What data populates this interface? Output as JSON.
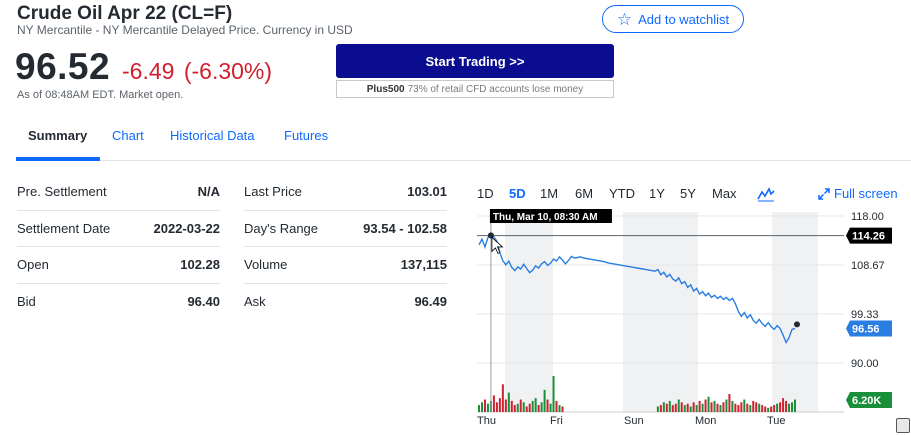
{
  "quote": {
    "title": "Crude Oil Apr 22 (CL=F)",
    "subtitle": "NY Mercantile - NY Mercantile Delayed Price. Currency in USD",
    "price": "96.52",
    "change": "-6.49",
    "change_pct": "(-6.30%)",
    "as_of": "As of 08:48AM EDT. Market open."
  },
  "watchlist_label": "Add to watchlist",
  "promo": {
    "button_label": "Start Trading >>",
    "brand": "Plus500",
    "disclaimer": "73% of retail CFD accounts lose money"
  },
  "tabs": [
    {
      "label": "Summary",
      "active": true
    },
    {
      "label": "Chart"
    },
    {
      "label": "Historical Data"
    },
    {
      "label": "Futures"
    }
  ],
  "stats_left": [
    {
      "label": "Pre. Settlement",
      "value": "N/A"
    },
    {
      "label": "Settlement Date",
      "value": "2022-03-22"
    },
    {
      "label": "Open",
      "value": "102.28"
    },
    {
      "label": "Bid",
      "value": "96.40"
    }
  ],
  "stats_right": [
    {
      "label": "Last Price",
      "value": "103.01"
    },
    {
      "label": "Day's Range",
      "value": "93.54 - 102.58"
    },
    {
      "label": "Volume",
      "value": "137,115"
    },
    {
      "label": "Ask",
      "value": "96.49"
    }
  ],
  "ranges": [
    "1D",
    "5D",
    "1M",
    "6M",
    "YTD",
    "1Y",
    "5Y",
    "Max"
  ],
  "active_range": "5D",
  "fullscreen_label": "Full screen",
  "icons": {
    "watchlist": "star-outline-icon",
    "chart_type": "mountain-chart-icon",
    "fullscreen": "expand-arrows-icon"
  },
  "colors": {
    "accent": "#0f69ff",
    "negative": "#d0202f",
    "positive": "#1a8f3a",
    "cta": "#0a0d8f",
    "line": "#2a7de1"
  },
  "chart_data": {
    "type": "line",
    "tooltip": "Thu, Mar 10, 08:30 AM",
    "x_ticks": [
      "Thu",
      "Fri",
      "Sun",
      "Mon",
      "Tue"
    ],
    "y_ticks": [
      "118.00",
      "108.67",
      "99.33",
      "90.00"
    ],
    "ylim": [
      90,
      118
    ],
    "crosshair_value": "114.26",
    "current_value": "96.56",
    "volume_label": "6.20K",
    "series": [
      {
        "values": [
          112.5,
          113.6,
          112.1,
          113.9,
          114.3,
          114.0,
          113.2,
          111.0,
          109.5,
          108.7,
          109.4,
          108.2,
          107.6,
          108.3,
          107.9,
          108.8,
          108.0,
          107.2,
          107.7,
          108.5,
          108.1,
          108.9,
          109.3,
          108.6,
          109.0,
          109.8,
          109.4,
          110.2,
          109.6,
          108.9,
          109.5,
          110.3,
          110.0,
          110.1,
          110.2,
          110.0,
          109.9,
          109.8,
          109.7,
          109.6,
          109.5,
          109.4,
          109.3,
          109.1,
          109.0,
          108.9,
          108.8,
          108.7,
          108.6,
          108.5,
          108.4,
          108.3,
          108.2,
          108.1,
          108.0,
          107.9,
          107.8,
          107.7,
          107.6,
          107.5,
          107.8,
          106.8,
          107.3,
          106.4,
          106.9,
          106.0,
          105.6,
          106.2,
          105.1,
          105.5,
          104.4,
          104.9,
          103.7,
          104.2,
          103.1,
          103.6,
          102.8,
          103.3,
          102.5,
          102.9,
          102.3,
          102.7,
          102.1,
          102.5,
          101.9,
          102.3,
          101.3,
          99.8,
          98.9,
          99.6,
          98.6,
          99.2,
          98.1,
          97.6,
          98.3,
          97.5,
          97.0,
          97.7,
          96.9,
          96.4,
          97.1,
          96.6,
          95.3,
          93.9,
          94.8,
          96.4,
          96.6
        ]
      }
    ],
    "volume": {
      "values": [
        0.5,
        0.7,
        0.9,
        0.6,
        0.8,
        1.2,
        0.7,
        1.0,
        2.0,
        0.9,
        1.4,
        0.8,
        0.5,
        0.6,
        0.9,
        0.7,
        0.4,
        0.6,
        0.8,
        1.0,
        0.5,
        0.7,
        1.6,
        0.9,
        0.6,
        2.6,
        0.8,
        0.5,
        0.4,
        0,
        0,
        0,
        0,
        0,
        0,
        0,
        0,
        0,
        0,
        0,
        0,
        0,
        0,
        0,
        0,
        0,
        0,
        0,
        0,
        0,
        0,
        0,
        0,
        0,
        0,
        0,
        0,
        0,
        0,
        0,
        0.4,
        0.5,
        0.7,
        0.6,
        0.8,
        0.5,
        0.6,
        0.9,
        0.7,
        0.5,
        0.6,
        0.4,
        0.7,
        0.5,
        0.8,
        0.6,
        0.9,
        1.1,
        0.7,
        0.8,
        0.6,
        0.5,
        0.7,
        0.9,
        1.3,
        0.8,
        0.6,
        0.5,
        0.7,
        0.9,
        0.6,
        0.5,
        0.8,
        0.7,
        0.6,
        0.5,
        0.4,
        0.3,
        0.4,
        0.5,
        0.6,
        0.7,
        1.0,
        0.8,
        0.6,
        0.7,
        0.9
      ]
    }
  }
}
